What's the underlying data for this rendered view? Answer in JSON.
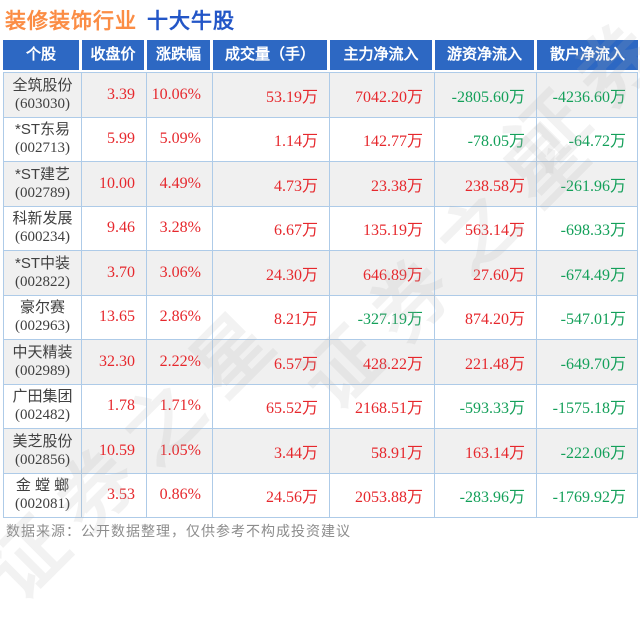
{
  "title": {
    "industry": "装修装饰行业",
    "suffix": "十大牛股"
  },
  "table": {
    "columns": [
      "个股",
      "收盘价",
      "涨跌幅",
      "成交量（手）",
      "主力净流入",
      "游资净流入",
      "散户净流入"
    ],
    "rows": [
      {
        "name": "全筑股份",
        "code": "(603030)",
        "close": "3.39",
        "change": "10.06%",
        "volume": "53.19万",
        "main": "7042.20万",
        "hot": "-2805.60万",
        "retail": "-4236.60万"
      },
      {
        "name": "*ST东易",
        "code": "(002713)",
        "close": "5.99",
        "change": "5.09%",
        "volume": "1.14万",
        "main": "142.77万",
        "hot": "-78.05万",
        "retail": "-64.72万"
      },
      {
        "name": "*ST建艺",
        "code": "(002789)",
        "close": "10.00",
        "change": "4.49%",
        "volume": "4.73万",
        "main": "23.38万",
        "hot": "238.58万",
        "retail": "-261.96万"
      },
      {
        "name": "科新发展",
        "code": "(600234)",
        "close": "9.46",
        "change": "3.28%",
        "volume": "6.67万",
        "main": "135.19万",
        "hot": "563.14万",
        "retail": "-698.33万"
      },
      {
        "name": "*ST中装",
        "code": "(002822)",
        "close": "3.70",
        "change": "3.06%",
        "volume": "24.30万",
        "main": "646.89万",
        "hot": "27.60万",
        "retail": "-674.49万"
      },
      {
        "name": "豪尔赛",
        "code": "(002963)",
        "close": "13.65",
        "change": "2.86%",
        "volume": "8.21万",
        "main": "-327.19万",
        "hot": "874.20万",
        "retail": "-547.01万"
      },
      {
        "name": "中天精装",
        "code": "(002989)",
        "close": "32.30",
        "change": "2.22%",
        "volume": "6.57万",
        "main": "428.22万",
        "hot": "221.48万",
        "retail": "-649.70万"
      },
      {
        "name": "广田集团",
        "code": "(002482)",
        "close": "1.78",
        "change": "1.71%",
        "volume": "65.52万",
        "main": "2168.51万",
        "hot": "-593.33万",
        "retail": "-1575.18万"
      },
      {
        "name": "美芝股份",
        "code": "(002856)",
        "close": "10.59",
        "change": "1.05%",
        "volume": "3.44万",
        "main": "58.91万",
        "hot": "163.14万",
        "retail": "-222.06万"
      },
      {
        "name": "金 螳 螂",
        "code": "(002081)",
        "close": "3.53",
        "change": "0.86%",
        "volume": "24.56万",
        "main": "2053.88万",
        "hot": "-283.96万",
        "retail": "-1769.92万"
      }
    ]
  },
  "footer": {
    "note": "数据来源：公开数据整理，仅供参考不构成投资建议"
  },
  "watermark": {
    "text": "证券之星"
  },
  "colors": {
    "up_red": "#e6282d",
    "down_green": "#14a05a",
    "header_bg": "#2d68c3",
    "title_industry_orange": "#fb8d45",
    "title_suffix_blue": "#2356c7",
    "cell_border": "#aecbe8",
    "row_alt_bg": "#f0f0f0"
  }
}
